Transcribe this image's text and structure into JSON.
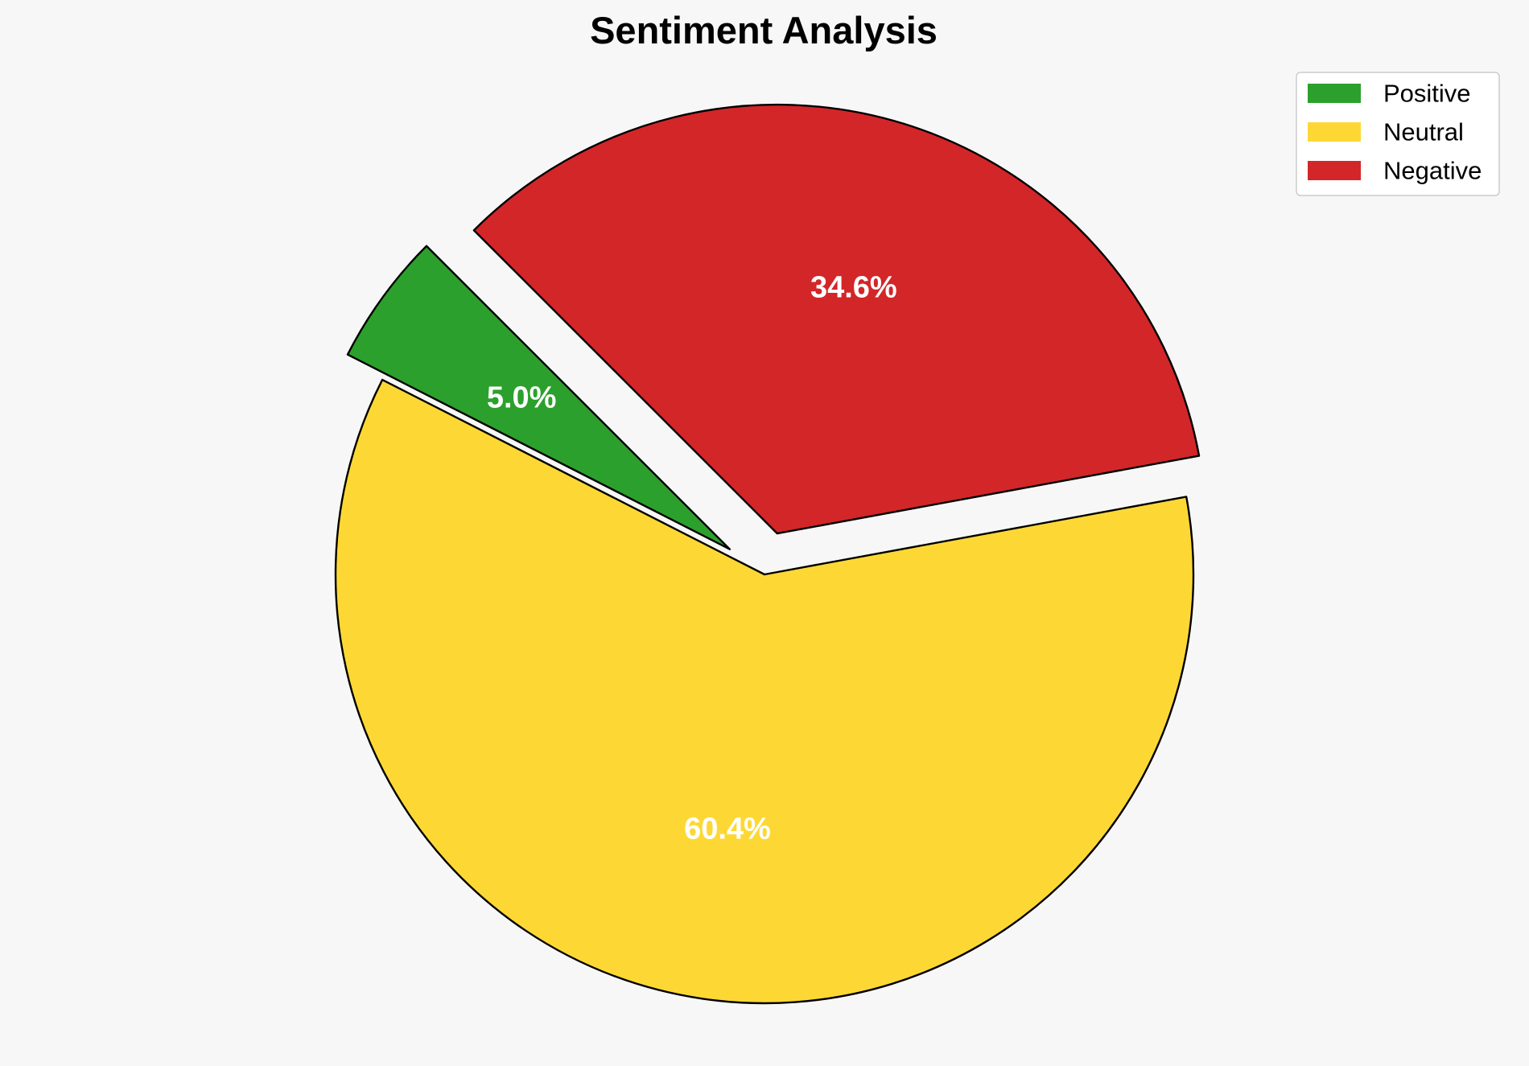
{
  "chart_data": {
    "type": "pie",
    "title": "Sentiment Analysis",
    "labels": [
      "Positive",
      "Neutral",
      "Negative"
    ],
    "values": [
      5.0,
      60.4,
      34.6
    ],
    "value_labels": [
      "5.0%",
      "60.4%",
      "34.6%"
    ],
    "colors": [
      "#2ca02c",
      "#fdd835",
      "#d32628"
    ],
    "exploded": [
      true,
      false,
      true
    ],
    "start_angle": 135,
    "direction": "counterclockwise",
    "legend_position": "top-right"
  }
}
